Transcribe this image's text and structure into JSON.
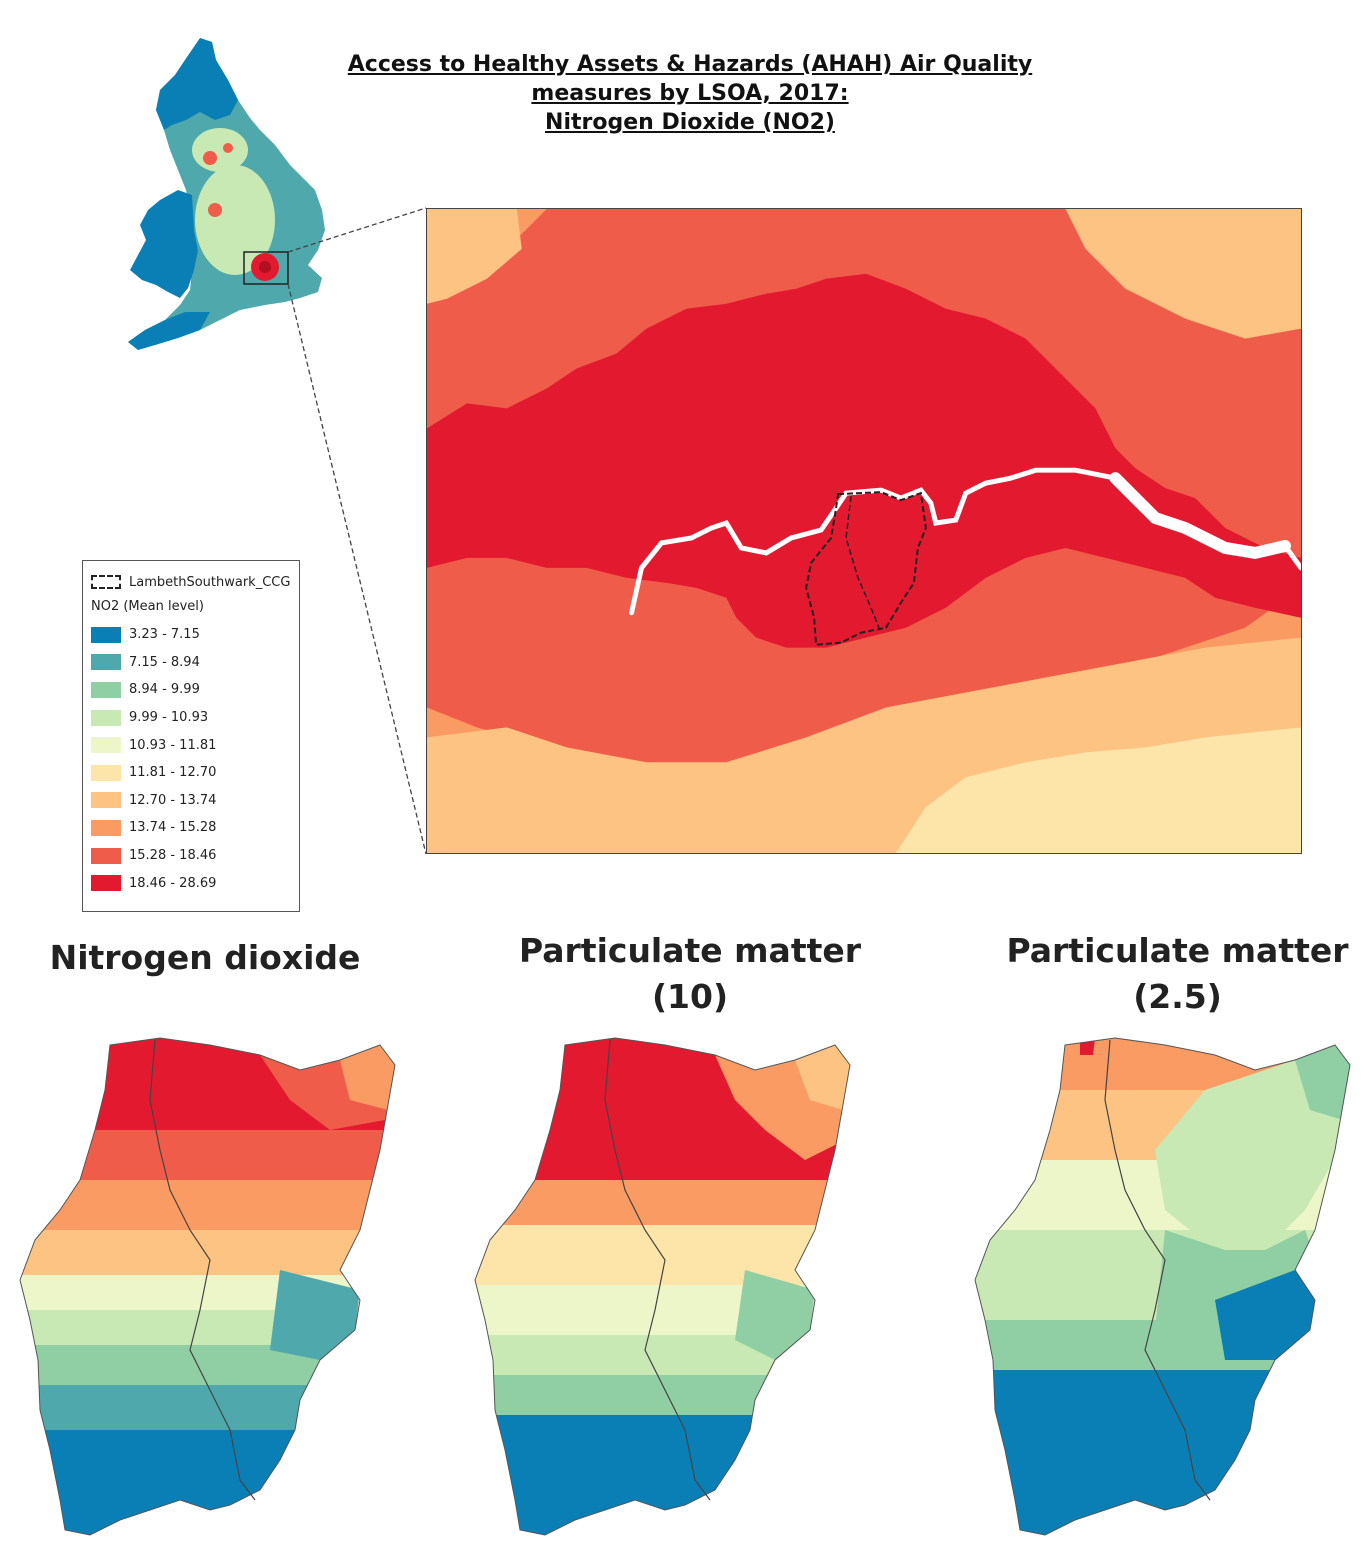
{
  "title": {
    "line1": "Access to Healthy Assets & Hazards (AHAH) Air Quality",
    "line2": "measures by LSOA, 2017:",
    "line3": "Nitrogen Dioxide (NO2)"
  },
  "legend": {
    "boundary_label": "LambethSouthwark_CCG",
    "title": "NO2 (Mean level)",
    "classes": [
      {
        "label": "3.23 - 7.15",
        "color": "#0a7fb5"
      },
      {
        "label": "7.15 - 8.94",
        "color": "#4fa8ab"
      },
      {
        "label": "8.94 - 9.99",
        "color": "#8fcfa3"
      },
      {
        "label": "9.99 - 10.93",
        "color": "#c8e8b4"
      },
      {
        "label": "10.93 - 11.81",
        "color": "#ecf6c8"
      },
      {
        "label": "11.81 - 12.70",
        "color": "#fde4a8"
      },
      {
        "label": "12.70 - 13.74",
        "color": "#fcc383"
      },
      {
        "label": "13.74 - 15.28",
        "color": "#f99b63"
      },
      {
        "label": "15.28 - 18.46",
        "color": "#f05c4a"
      },
      {
        "label": "18.46 - 28.69",
        "color": "#e3192f"
      }
    ]
  },
  "panels": [
    {
      "title_line1": "Nitrogen dioxide",
      "title_line2": ""
    },
    {
      "title_line1": "Particulate matter",
      "title_line2": "(10)"
    },
    {
      "title_line1": "Particulate matter",
      "title_line2": "(2.5)"
    }
  ]
}
